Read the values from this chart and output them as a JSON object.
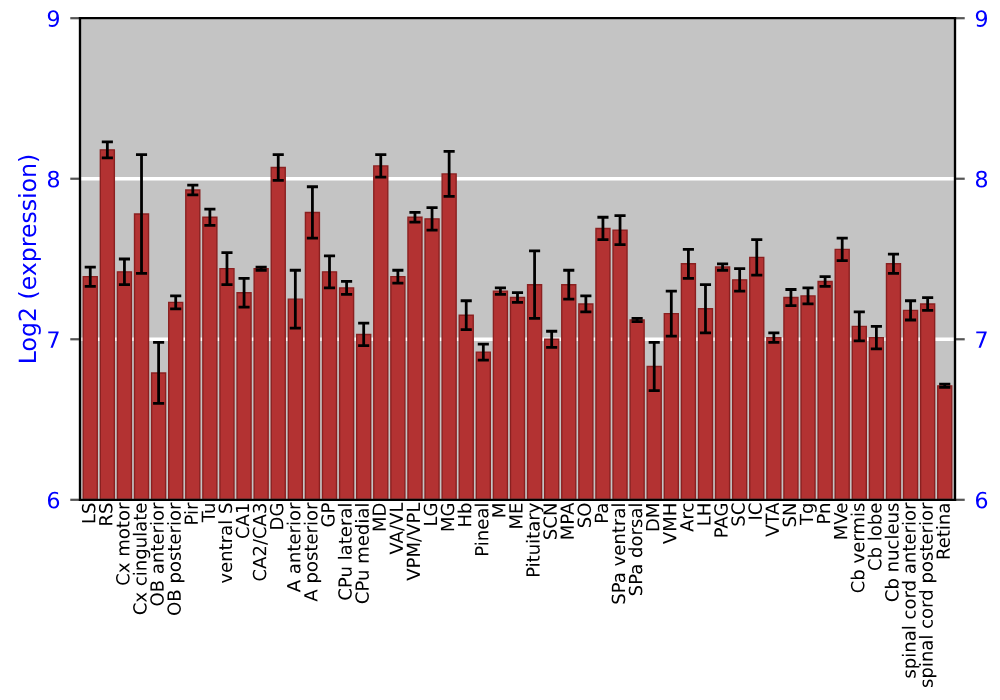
{
  "chart_data": {
    "type": "bar",
    "ylabel": "Log2 (expression)",
    "categories": [
      "LS",
      "RS",
      "Cx motor",
      "Cx cingulate",
      "OB anterior",
      "OB posterior",
      "Pir",
      "Tu",
      "ventral S",
      "CA1",
      "CA2/CA3",
      "DG",
      "A anterior",
      "A posterior",
      "GP",
      "CPu lateral",
      "CPu medial",
      "MD",
      "VA/VL",
      "VPM/VPL",
      "LG",
      "MG",
      "Hb",
      "Pineal",
      "M",
      "ME",
      "Pituitary",
      "SCN",
      "MPA",
      "SO",
      "Pa",
      "SPa ventral",
      "SPa dorsal",
      "DM",
      "VMH",
      "Arc",
      "LH",
      "PAG",
      "SC",
      "IC",
      "VTA",
      "SN",
      "Tg",
      "Pn",
      "MVe",
      "Cb vermis",
      "Cb lobe",
      "Cb nucleus",
      "spinal cord anterior",
      "spinal cord posterior",
      "Retina"
    ],
    "values": [
      7.39,
      8.18,
      7.42,
      7.78,
      6.79,
      7.23,
      7.93,
      7.76,
      7.44,
      7.29,
      7.44,
      8.07,
      7.25,
      7.79,
      7.42,
      7.32,
      7.03,
      8.08,
      7.39,
      7.76,
      7.75,
      8.03,
      7.15,
      6.92,
      7.3,
      7.26,
      7.34,
      7.0,
      7.34,
      7.22,
      7.69,
      7.68,
      7.12,
      6.83,
      7.16,
      7.47,
      7.19,
      7.45,
      7.37,
      7.51,
      7.01,
      7.26,
      7.27,
      7.36,
      7.56,
      7.08,
      7.01,
      7.47,
      7.18,
      7.22,
      6.71
    ],
    "errors": [
      0.06,
      0.05,
      0.08,
      0.37,
      0.19,
      0.04,
      0.03,
      0.05,
      0.1,
      0.09,
      0.01,
      0.08,
      0.18,
      0.16,
      0.1,
      0.04,
      0.07,
      0.07,
      0.04,
      0.03,
      0.07,
      0.14,
      0.09,
      0.05,
      0.02,
      0.03,
      0.21,
      0.05,
      0.09,
      0.05,
      0.07,
      0.09,
      0.01,
      0.15,
      0.14,
      0.09,
      0.15,
      0.02,
      0.07,
      0.11,
      0.03,
      0.05,
      0.05,
      0.03,
      0.07,
      0.09,
      0.07,
      0.06,
      0.06,
      0.04,
      0.01
    ],
    "color": "#b33232",
    "ylim": [
      6,
      9
    ],
    "yticks": [
      6,
      7,
      8,
      9
    ],
    "y2lim": [
      6,
      9
    ],
    "y2ticks": [
      6,
      7,
      8,
      9
    ],
    "grid": "y",
    "legend": false
  }
}
